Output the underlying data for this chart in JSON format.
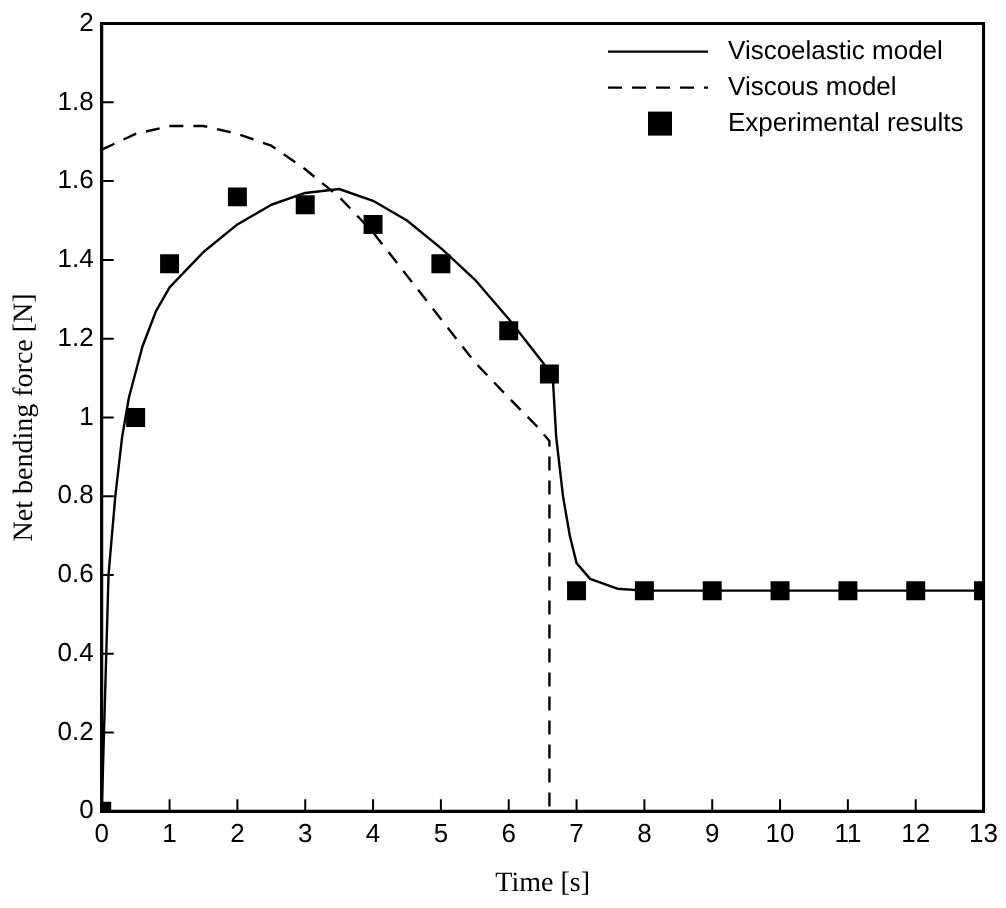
{
  "chart_data": {
    "type": "line",
    "xlabel": "Time [s]",
    "ylabel": "Net bending force [N]",
    "xlim": [
      0,
      13
    ],
    "xticks": [
      0,
      1,
      2,
      3,
      4,
      5,
      6,
      7,
      8,
      9,
      10,
      11,
      12,
      13
    ],
    "ylim": [
      0,
      2
    ],
    "yticks": [
      0,
      0.2,
      0.4,
      0.6,
      0.8,
      1,
      1.2,
      1.4,
      1.6,
      1.8,
      2
    ],
    "grid": false,
    "legend": "top right",
    "series": [
      {
        "name": "Viscoelastic model",
        "color": "#000000",
        "line_style": "solid",
        "marker": "none",
        "x": [
          0,
          0.05,
          0.1,
          0.2,
          0.3,
          0.4,
          0.6,
          0.8,
          1,
          1.5,
          2,
          2.5,
          3,
          3.5,
          4,
          4.5,
          5,
          5.5,
          6,
          6.5,
          6.65,
          6.7,
          6.8,
          6.9,
          7,
          7.2,
          7.6,
          8,
          9,
          13
        ],
        "values": [
          0,
          0.3,
          0.6,
          0.8,
          0.95,
          1.05,
          1.18,
          1.27,
          1.33,
          1.42,
          1.49,
          1.54,
          1.57,
          1.58,
          1.55,
          1.5,
          1.43,
          1.35,
          1.25,
          1.14,
          1.1,
          0.95,
          0.8,
          0.7,
          0.63,
          0.59,
          0.565,
          0.56,
          0.56,
          0.56
        ]
      },
      {
        "name": "Viscous model",
        "color": "#000000",
        "line_style": "dashed",
        "marker": "none",
        "x": [
          0,
          0.5,
          1,
          1.5,
          2,
          2.5,
          3,
          3.5,
          4,
          4.5,
          5,
          5.5,
          6,
          6.4,
          6.6,
          6.6
        ],
        "values": [
          1.68,
          1.72,
          1.74,
          1.74,
          1.72,
          1.69,
          1.63,
          1.56,
          1.47,
          1.36,
          1.25,
          1.14,
          1.05,
          0.98,
          0.94,
          0
        ]
      },
      {
        "name": "Experimental results",
        "type": "scatter",
        "color": "#000000",
        "marker": "square",
        "x": [
          0,
          0.5,
          1,
          2,
          3,
          4,
          5,
          6,
          6.6,
          7,
          8,
          9,
          10,
          11,
          12,
          13
        ],
        "values": [
          0,
          1,
          1.39,
          1.56,
          1.54,
          1.49,
          1.39,
          1.22,
          1.11,
          0.56,
          0.56,
          0.56,
          0.56,
          0.56,
          0.56,
          0.56
        ]
      }
    ]
  }
}
